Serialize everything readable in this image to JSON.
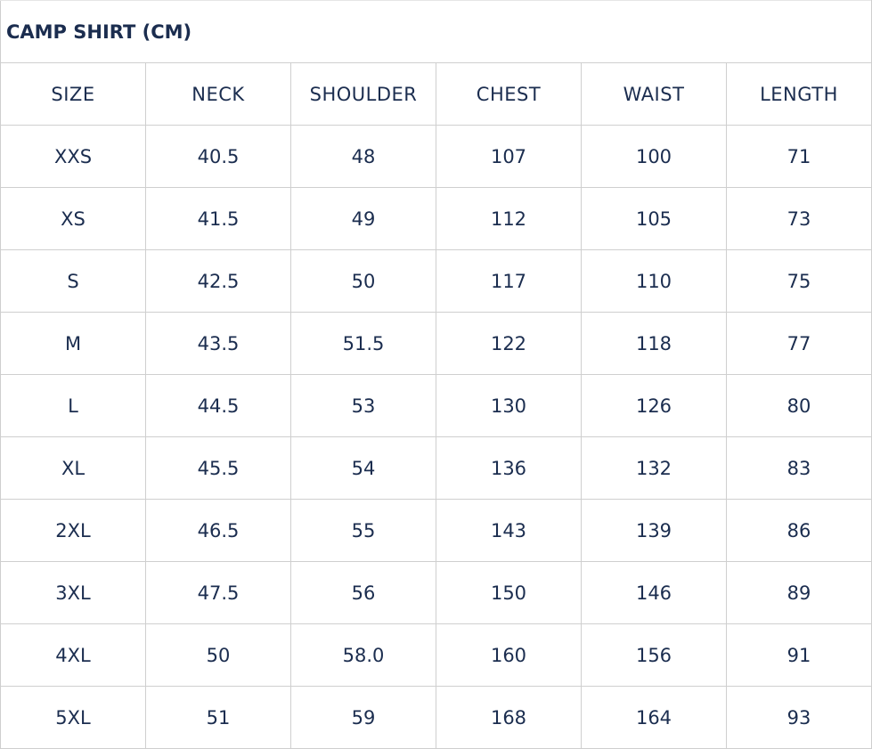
{
  "title": "CAMP SHIRT (CM)",
  "headers": [
    "SIZE",
    "NECK",
    "SHOULDER",
    "CHEST",
    "WAIST",
    "LENGTH"
  ],
  "rows": [
    [
      "XXS",
      "40.5",
      "48",
      "107",
      "100",
      "71"
    ],
    [
      "XS",
      "41.5",
      "49",
      "112",
      "105",
      "73"
    ],
    [
      "S",
      "42.5",
      "50",
      "117",
      "110",
      "75"
    ],
    [
      "M",
      "43.5",
      "51.5",
      "122",
      "118",
      "77"
    ],
    [
      "L",
      "44.5",
      "53",
      "130",
      "126",
      "80"
    ],
    [
      "XL",
      "45.5",
      "54",
      "136",
      "132",
      "83"
    ],
    [
      "2XL",
      "46.5",
      "55",
      "143",
      "139",
      "86"
    ],
    [
      "3XL",
      "47.5",
      "56",
      "150",
      "146",
      "89"
    ],
    [
      "4XL",
      "50",
      "58.0",
      "160",
      "156",
      "91"
    ],
    [
      "5XL",
      "51",
      "59",
      "168",
      "164",
      "93"
    ]
  ],
  "colors": {
    "text": "#1b2d4f",
    "border": "#cfcfcf"
  }
}
